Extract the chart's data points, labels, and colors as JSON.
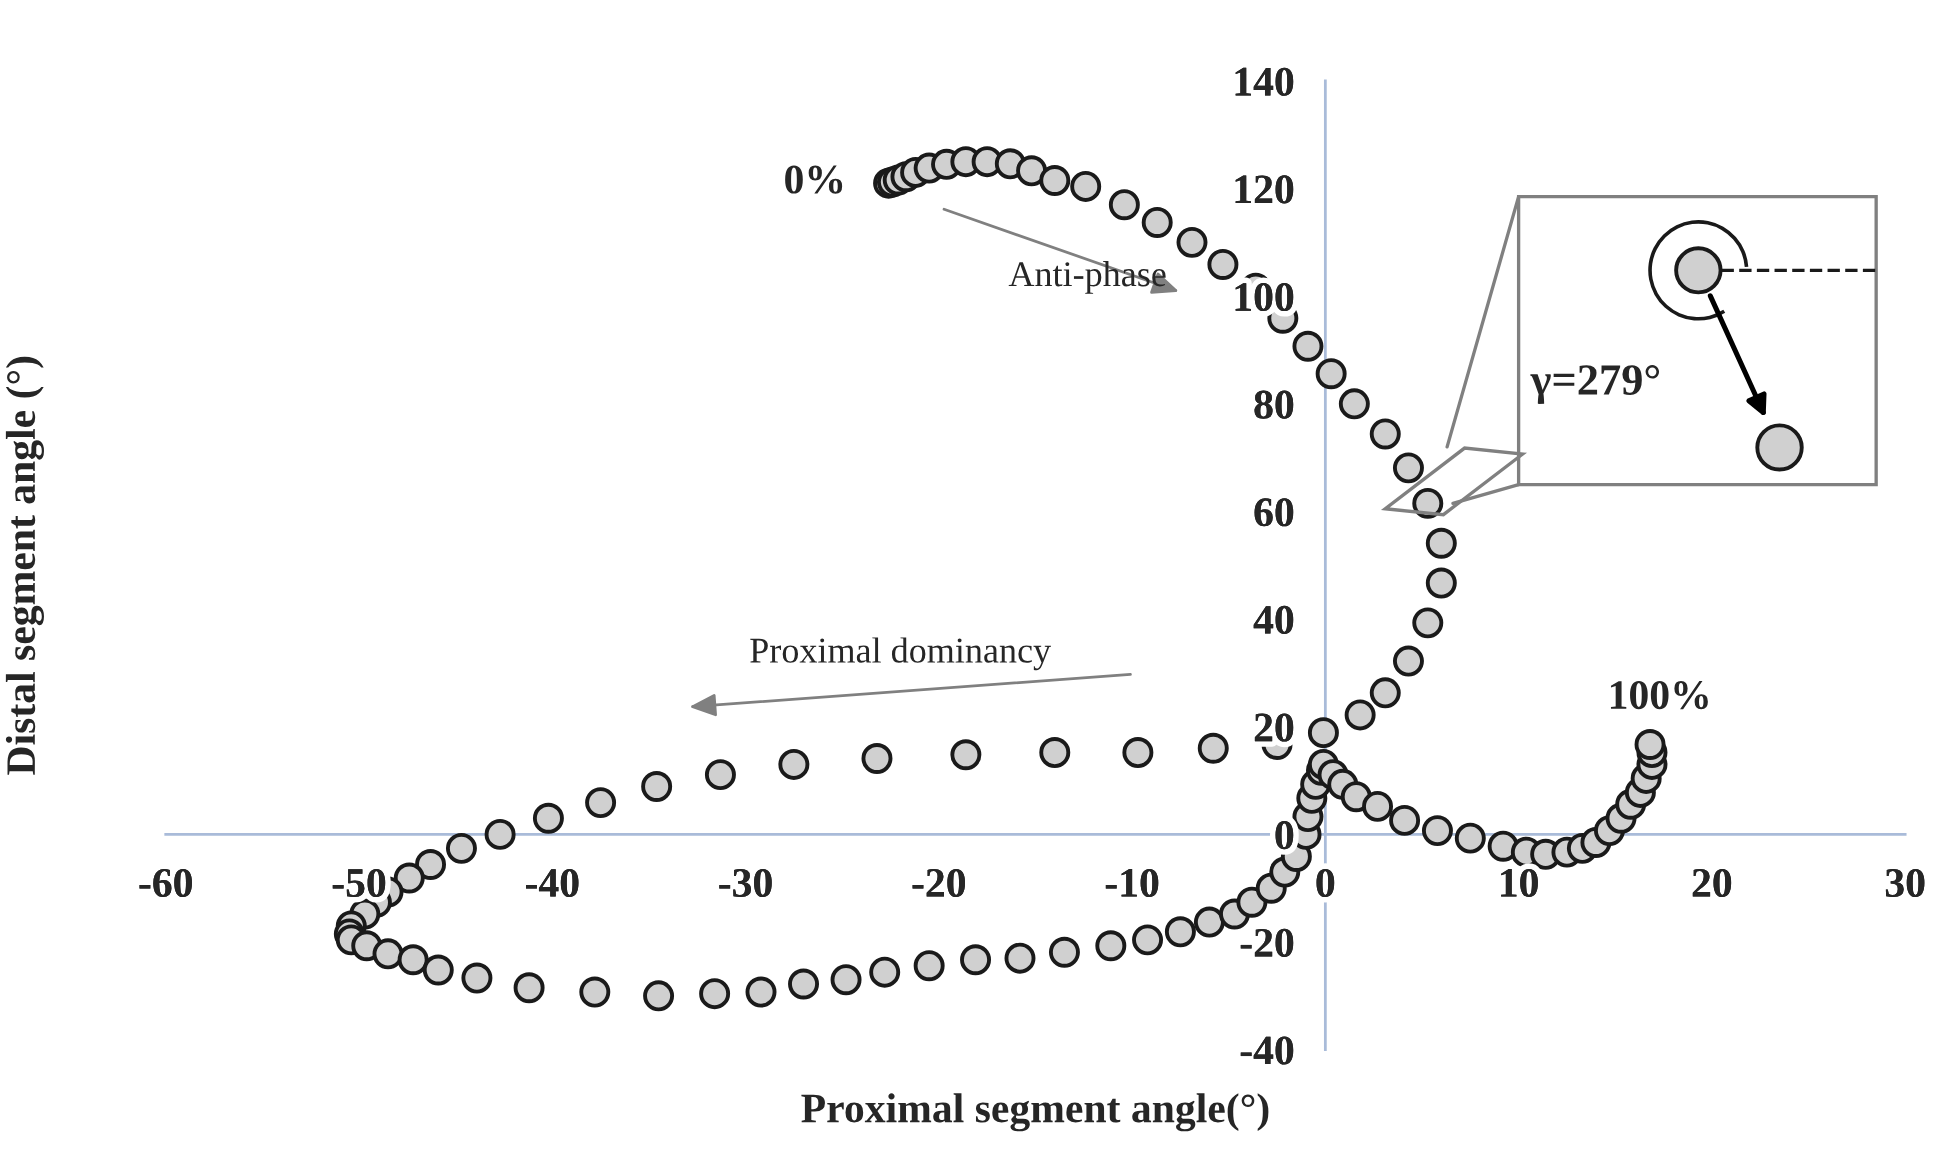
{
  "chart_data": {
    "type": "scatter",
    "xlabel": "Proximal segment angle(°)",
    "ylabel": "Distal segment angle (°)",
    "xlim": [
      -60,
      30
    ],
    "ylim": [
      -40,
      140
    ],
    "xticks": [
      -60,
      -50,
      -40,
      -30,
      -20,
      -10,
      0,
      10,
      20,
      30
    ],
    "yticks": [
      -40,
      -20,
      0,
      20,
      40,
      60,
      80,
      100,
      120,
      140
    ],
    "grid": false,
    "marker": "circle",
    "series": [
      {
        "color": "#d0d0d0",
        "x": [
          -22.6,
          -22.4,
          -22.1,
          -21.7,
          -21.2,
          -20.5,
          -19.6,
          -18.6,
          -17.5,
          -16.3,
          -15.2,
          -14.0,
          -12.4,
          -10.4,
          -8.7,
          -6.9,
          -5.3,
          -3.6,
          -2.2,
          -0.9,
          0.3,
          1.5,
          3.1,
          4.3,
          5.3,
          6.0,
          6.0,
          5.3,
          4.3,
          3.1,
          1.8,
          -0.1,
          -2.5,
          -5.8,
          -9.7,
          -14.0,
          -18.6,
          -23.2,
          -27.5,
          -31.3,
          -34.6,
          -37.5,
          -40.2,
          -42.7,
          -44.7,
          -46.3,
          -47.4,
          -48.5,
          -49.1,
          -49.7,
          -50.4,
          -50.5,
          -50.4,
          -49.6,
          -48.5,
          -47.2,
          -45.9,
          -43.9,
          -41.2,
          -37.8,
          -34.5,
          -31.6,
          -29.2,
          -27.0,
          -24.8,
          -22.8,
          -20.5,
          -18.1,
          -15.8,
          -13.5,
          -11.1,
          -9.2,
          -7.5,
          -6.0,
          -4.7,
          -3.8,
          -2.8,
          -2.1,
          -1.5,
          -1.0,
          -0.9,
          -0.7,
          -0.5,
          -0.2,
          -0.1,
          0.4,
          0.9,
          1.6,
          2.7,
          4.1,
          5.8,
          7.5,
          9.2,
          10.4,
          11.4,
          12.5,
          13.3,
          14.0,
          14.7,
          15.3,
          15.8,
          16.3,
          16.6,
          16.9,
          16.9,
          16.8
        ],
        "values": [
          121.0,
          121.2,
          121.6,
          122.2,
          123.0,
          123.8,
          124.5,
          125.0,
          125.0,
          124.6,
          123.3,
          121.5,
          120.4,
          117.0,
          113.7,
          110.0,
          105.9,
          101.5,
          95.9,
          90.7,
          85.6,
          80.0,
          74.4,
          68.1,
          61.5,
          54.1,
          46.7,
          39.3,
          32.2,
          26.3,
          22.2,
          18.9,
          16.7,
          16.0,
          15.2,
          15.2,
          14.8,
          14.1,
          13.0,
          11.1,
          8.9,
          5.9,
          3.0,
          0.0,
          -2.6,
          -5.6,
          -8.1,
          -10.7,
          -12.6,
          -14.8,
          -17.0,
          -18.5,
          -19.6,
          -20.7,
          -22.2,
          -23.3,
          -25.2,
          -26.7,
          -28.5,
          -29.3,
          -30.0,
          -29.6,
          -29.3,
          -27.8,
          -27.0,
          -25.6,
          -24.4,
          -23.3,
          -23.0,
          -21.9,
          -20.7,
          -19.6,
          -18.1,
          -16.3,
          -14.8,
          -12.6,
          -10.0,
          -7.0,
          -4.1,
          0.0,
          3.3,
          6.7,
          9.3,
          11.9,
          13.0,
          11.1,
          9.3,
          7.0,
          5.2,
          2.6,
          0.7,
          -0.7,
          -2.2,
          -3.3,
          -3.7,
          -3.3,
          -2.6,
          -1.5,
          0.7,
          3.0,
          5.6,
          7.8,
          10.4,
          13.0,
          15.2,
          16.7
        ]
      }
    ],
    "annotations": [
      {
        "text": "0%",
        "x": -22.6,
        "y": 121.0
      },
      {
        "text": "100%",
        "x": 16.8,
        "y": 16.7
      },
      "Anti-phase",
      "Proximal dominancy",
      "γ=279°"
    ]
  }
}
